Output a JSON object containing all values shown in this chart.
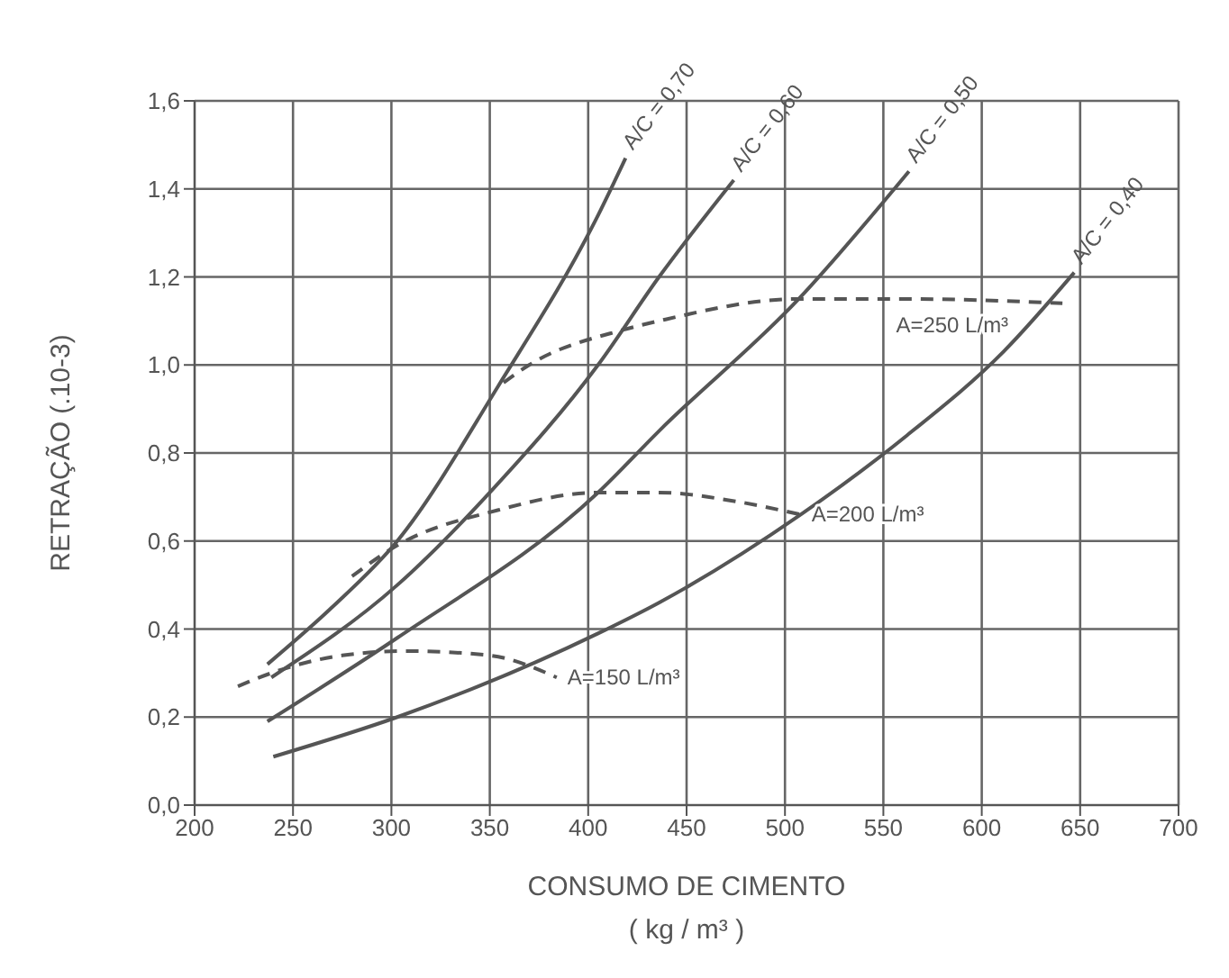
{
  "chart_data": {
    "type": "line",
    "xlabel": "CONSUMO DE CIMENTO\n( kg / m³ )",
    "ylabel": "RETRAÇÃO (.10-3)",
    "xlim": [
      200,
      700
    ],
    "xticks": [
      200,
      250,
      300,
      350,
      400,
      450,
      500,
      550,
      600,
      650,
      700
    ],
    "ylim": [
      0,
      1.6
    ],
    "yticks": [
      {
        "value": 0,
        "label": "0,0"
      },
      {
        "value": 0.2,
        "label": "0,2"
      },
      {
        "value": 0.4,
        "label": "0,4"
      },
      {
        "value": 0.6,
        "label": "0,6"
      },
      {
        "value": 0.8,
        "label": "0,8"
      },
      {
        "value": 1.0,
        "label": "1,0"
      },
      {
        "value": 1.2,
        "label": "1,2"
      },
      {
        "value": 1.4,
        "label": "1,4"
      },
      {
        "value": 1.6,
        "label": "1,6"
      }
    ],
    "grid": true,
    "marker": "none",
    "series": [
      {
        "name": "A/C = 0,70",
        "color": "#555555",
        "line_style": "solid",
        "x": [
          237,
          270,
          303,
          354,
          405,
          419
        ],
        "values": [
          0.32,
          0.45,
          0.6,
          0.95,
          1.34,
          1.47
        ]
      },
      {
        "name": "A/C = 0,60",
        "color": "#555555",
        "line_style": "solid",
        "x": [
          239,
          303,
          352,
          405,
          436,
          474
        ],
        "values": [
          0.29,
          0.5,
          0.72,
          1.0,
          1.2,
          1.42
        ]
      },
      {
        "name": "A/C = 0,50",
        "color": "#555555",
        "line_style": "solid",
        "x": [
          237,
          303,
          405,
          436,
          507,
          563
        ],
        "values": [
          0.19,
          0.38,
          0.71,
          0.85,
          1.15,
          1.44
        ]
      },
      {
        "name": "A/C = 0,40",
        "color": "#555555",
        "line_style": "solid",
        "x": [
          240,
          303,
          405,
          436,
          508,
          562,
          611,
          647
        ],
        "values": [
          0.11,
          0.2,
          0.39,
          0.46,
          0.66,
          0.84,
          1.03,
          1.21
        ]
      },
      {
        "name": "A=150 L/m³",
        "color": "#555555",
        "line_style": "dashed",
        "x": [
          222,
          239,
          275,
          308,
          350,
          384
        ],
        "values": [
          0.27,
          0.3,
          0.34,
          0.35,
          0.34,
          0.29
        ]
      },
      {
        "name": "A=200 L/m³",
        "color": "#555555",
        "line_style": "dashed",
        "x": [
          280,
          303,
          354,
          405,
          436,
          475,
          508
        ],
        "values": [
          0.52,
          0.59,
          0.67,
          0.71,
          0.71,
          0.69,
          0.66
        ]
      },
      {
        "name": "A=250 L/m³",
        "color": "#555555",
        "line_style": "dashed",
        "x": [
          357,
          370,
          418,
          436,
          507,
          562,
          641
        ],
        "values": [
          0.96,
          1.0,
          1.08,
          1.1,
          1.15,
          1.15,
          1.14
        ]
      }
    ]
  }
}
